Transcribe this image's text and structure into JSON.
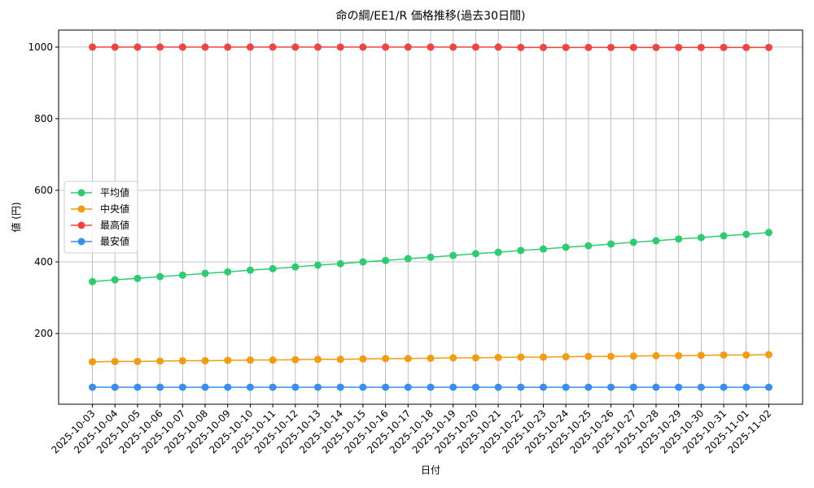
{
  "chart_data": {
    "type": "line",
    "title": "命の綱/EE1/R 価格推移(過去30日間)",
    "x_label": "日付",
    "y_label": "値 (円)",
    "categories": [
      "2025-10-03",
      "2025-10-04",
      "2025-10-05",
      "2025-10-06",
      "2025-10-07",
      "2025-10-08",
      "2025-10-09",
      "2025-10-10",
      "2025-10-11",
      "2025-10-12",
      "2025-10-13",
      "2025-10-14",
      "2025-10-15",
      "2025-10-16",
      "2025-10-17",
      "2025-10-18",
      "2025-10-19",
      "2025-10-20",
      "2025-10-21",
      "2025-10-22",
      "2025-10-23",
      "2025-10-24",
      "2025-10-25",
      "2025-10-26",
      "2025-10-27",
      "2025-10-28",
      "2025-10-29",
      "2025-10-30",
      "2025-10-31",
      "2025-11-01",
      "2025-11-02"
    ],
    "series": [
      {
        "name": "平均値",
        "color": "#2ecc71",
        "values": [
          345,
          350,
          354,
          359,
          363,
          368,
          372,
          377,
          381,
          386,
          391,
          395,
          400,
          404,
          409,
          413,
          418,
          423,
          427,
          432,
          436,
          441,
          445,
          450,
          455,
          459,
          464,
          468,
          473,
          477,
          482
        ]
      },
      {
        "name": "中央値",
        "color": "#f39c12",
        "values": [
          121,
          122,
          122,
          123,
          124,
          124,
          125,
          126,
          126,
          127,
          128,
          128,
          129,
          130,
          130,
          131,
          132,
          132,
          133,
          134,
          134,
          135,
          136,
          136,
          137,
          138,
          138,
          139,
          140,
          140,
          141
        ]
      },
      {
        "name": "最高値",
        "color": "#ef4444",
        "values": [
          1000,
          1000,
          1000,
          1000,
          1000,
          1000,
          1000,
          1000,
          1000,
          1000,
          1000,
          1000,
          1000,
          1000,
          1000,
          1000,
          1000,
          1000,
          1000,
          999,
          999,
          999,
          999,
          999,
          999,
          999,
          999,
          999,
          999,
          999,
          999
        ]
      },
      {
        "name": "最安値",
        "color": "#3b8eea",
        "values": [
          50,
          50,
          50,
          50,
          50,
          50,
          50,
          50,
          50,
          50,
          50,
          50,
          50,
          50,
          50,
          50,
          50,
          50,
          50,
          50,
          50,
          50,
          50,
          50,
          50,
          50,
          50,
          50,
          50,
          50,
          50
        ]
      }
    ],
    "ylim": [
      2.5,
      1047.5
    ],
    "yticks": [
      200,
      400,
      600,
      800,
      1000
    ],
    "grid": true,
    "legend": "center left"
  }
}
